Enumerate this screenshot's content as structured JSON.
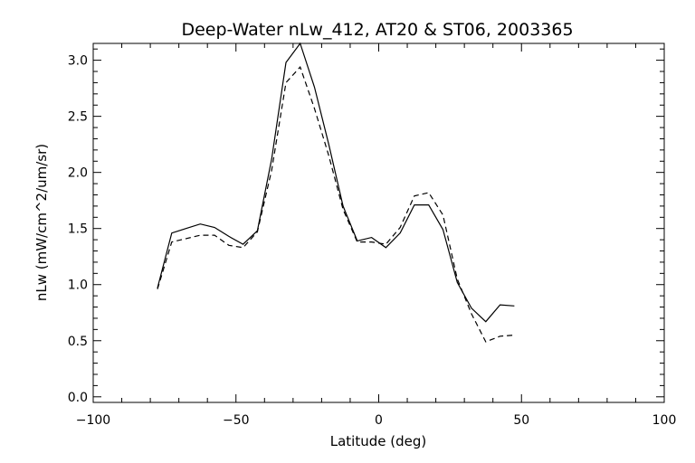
{
  "chart_data": {
    "type": "line",
    "title": "Deep-Water nLw_412, AT20 & ST06, 2003365",
    "xlabel": "Latitude (deg)",
    "ylabel": "nLw (mW/cm^2/um/sr)",
    "xlim": [
      -100,
      100
    ],
    "ylim": [
      -0.05,
      3.15
    ],
    "xticks": [
      -100,
      -50,
      0,
      50,
      100
    ],
    "xtick_labels": [
      "−100",
      "−50",
      "0",
      "50",
      "100"
    ],
    "yticks": [
      0.0,
      0.5,
      1.0,
      1.5,
      2.0,
      2.5,
      3.0
    ],
    "ytick_labels": [
      "0.0",
      "0.5",
      "1.0",
      "1.5",
      "2.0",
      "2.5",
      "3.0"
    ],
    "grid": false,
    "series": [
      {
        "style": "solid",
        "x": [
          -77.5,
          -72.5,
          -67.5,
          -62.5,
          -57.5,
          -52.5,
          -47.5,
          -42.5,
          -37.5,
          -32.5,
          -27.5,
          -22.5,
          -17.5,
          -12.5,
          -7.5,
          -2.5,
          2.5,
          7.5,
          12.5,
          17.5,
          22.5,
          27.5,
          32.5,
          37.5,
          42.5,
          47.5
        ],
        "y": [
          0.97,
          1.46,
          1.5,
          1.54,
          1.51,
          1.43,
          1.36,
          1.48,
          2.12,
          2.98,
          3.15,
          2.76,
          2.25,
          1.7,
          1.39,
          1.42,
          1.33,
          1.46,
          1.71,
          1.71,
          1.49,
          1.02,
          0.79,
          0.67,
          0.82,
          0.81
        ]
      },
      {
        "style": "dashed",
        "x": [
          -77.5,
          -72.5,
          -67.5,
          -62.5,
          -57.5,
          -52.5,
          -47.5,
          -42.5,
          -37.5,
          -32.5,
          -27.5,
          -22.5,
          -17.5,
          -12.5,
          -7.5,
          -2.5,
          2.5,
          7.5,
          12.5,
          17.5,
          22.5,
          27.5,
          32.5,
          37.5,
          42.5,
          47.5
        ],
        "y": [
          0.96,
          1.38,
          1.41,
          1.44,
          1.44,
          1.35,
          1.33,
          1.47,
          2.02,
          2.8,
          2.94,
          2.57,
          2.15,
          1.67,
          1.38,
          1.38,
          1.36,
          1.51,
          1.79,
          1.82,
          1.62,
          1.05,
          0.74,
          0.49,
          0.54,
          0.55
        ]
      }
    ]
  }
}
